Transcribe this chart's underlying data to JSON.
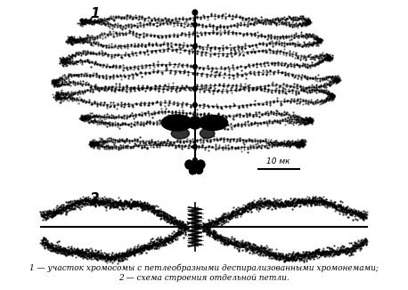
{
  "bg_color": "#ffffff",
  "fig_width": 4.58,
  "fig_height": 3.26,
  "dpi": 100,
  "caption_line1": "1 — участок хромосомы с петлеобразными деспирализованными хромонемами;",
  "caption_line2": "2 — схема строения отдельной петли.",
  "scale_label": "10 мк",
  "label1": "1",
  "label2": "2"
}
